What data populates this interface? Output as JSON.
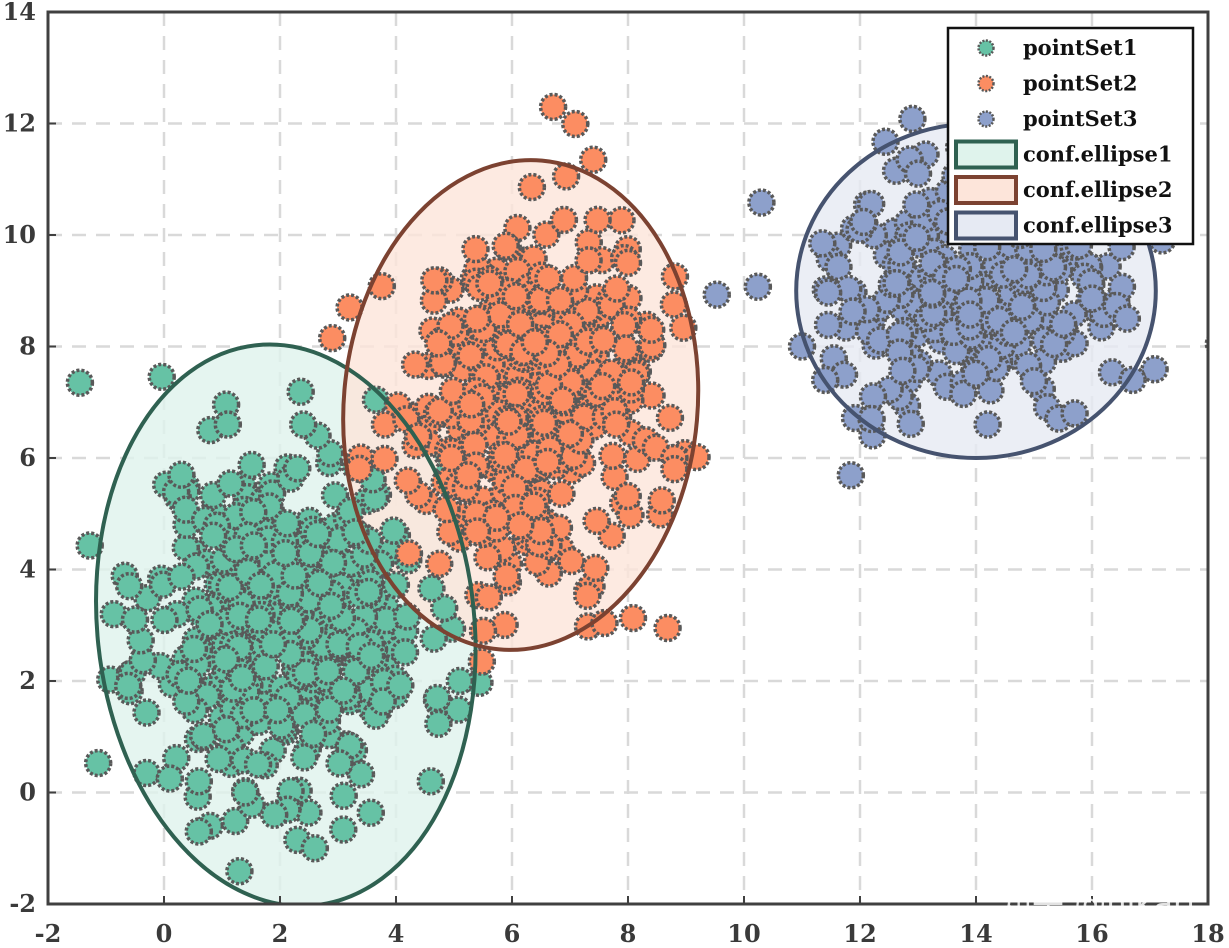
{
  "chart_data": {
    "type": "scatter",
    "title": "",
    "xlabel": "",
    "ylabel": "",
    "xlim": [
      -2,
      18
    ],
    "ylim": [
      -2,
      14
    ],
    "xticks": [
      -2,
      0,
      2,
      4,
      6,
      8,
      10,
      12,
      14,
      16,
      18
    ],
    "yticks": [
      -2,
      0,
      2,
      4,
      6,
      8,
      10,
      12,
      14
    ],
    "grid": true,
    "legend_position": "top-right",
    "series": [
      {
        "name": "pointSet1",
        "color": "#66C2A5",
        "edge_color": "#595959",
        "center": [
          2.1,
          3.1
        ],
        "spread": [
          1.2,
          1.5
        ],
        "count": 420,
        "seed": 11,
        "points": [
          [
            -1.45,
            7.35
          ],
          [
            0.6,
            -0.7
          ],
          [
            1.9,
            -0.4
          ],
          [
            2.3,
            -0.85
          ],
          [
            2.6,
            -1.0
          ],
          [
            4.6,
            0.2
          ],
          [
            5.1,
            2.0
          ],
          [
            -0.6,
            3.7
          ],
          [
            -0.5,
            3.1
          ],
          [
            0.3,
            5.7
          ],
          [
            0.8,
            6.5
          ],
          [
            1.1,
            6.6
          ],
          [
            2.4,
            6.6
          ],
          [
            -0.3,
            0.35
          ],
          [
            0.1,
            0.25
          ],
          [
            0.6,
            0.2
          ],
          [
            1.4,
            0.0
          ]
        ]
      },
      {
        "name": "pointSet2",
        "color": "#FC8D62",
        "edge_color": "#595959",
        "center": [
          6.2,
          7.0
        ],
        "spread": [
          1.05,
          1.55
        ],
        "count": 420,
        "seed": 29,
        "points": [
          [
            7.4,
            11.35
          ],
          [
            2.9,
            8.15
          ],
          [
            3.2,
            8.7
          ],
          [
            8.8,
            6.0
          ],
          [
            5.5,
            2.9
          ],
          [
            5.6,
            3.5
          ],
          [
            8.4,
            8.3
          ],
          [
            8.8,
            5.8
          ],
          [
            8.0,
            9.5
          ]
        ]
      },
      {
        "name": "pointSet3",
        "color": "#8DA0CB",
        "edge_color": "#595959",
        "center": [
          14.0,
          9.0
        ],
        "spread": [
          1.35,
          1.05
        ],
        "count": 280,
        "seed": 47,
        "points": [
          [
            11.0,
            8.0
          ],
          [
            11.4,
            7.4
          ],
          [
            11.35,
            9.85
          ],
          [
            16.6,
            8.5
          ],
          [
            16.7,
            7.4
          ],
          [
            15.7,
            6.8
          ],
          [
            13.0,
            11.1
          ],
          [
            12.2,
            6.7
          ],
          [
            14.2,
            6.6
          ]
        ]
      }
    ],
    "ellipses": [
      {
        "name": "conf.ellipse1",
        "center": [
          2.1,
          3.0
        ],
        "semi_axes": [
          3.25,
          5.05
        ],
        "angle_deg": 6,
        "fill": "#DFF3EC",
        "stroke": "#2F6151"
      },
      {
        "name": "conf.ellipse2",
        "center": [
          6.15,
          6.95
        ],
        "semi_axes": [
          3.05,
          4.4
        ],
        "angle_deg": -5,
        "fill": "#FDE5DA",
        "stroke": "#7C4231"
      },
      {
        "name": "conf.ellipse3",
        "center": [
          14.0,
          9.0
        ],
        "semi_axes": [
          3.1,
          3.0
        ],
        "angle_deg": 0,
        "fill": "#E6EAF3",
        "stroke": "#46536F"
      }
    ],
    "legend": [
      "pointSet1",
      "pointSet2",
      "pointSet3",
      "conf.ellipse1",
      "conf.ellipse2",
      "conf.ellipse3"
    ]
  },
  "watermark": "知乎 @hikari"
}
